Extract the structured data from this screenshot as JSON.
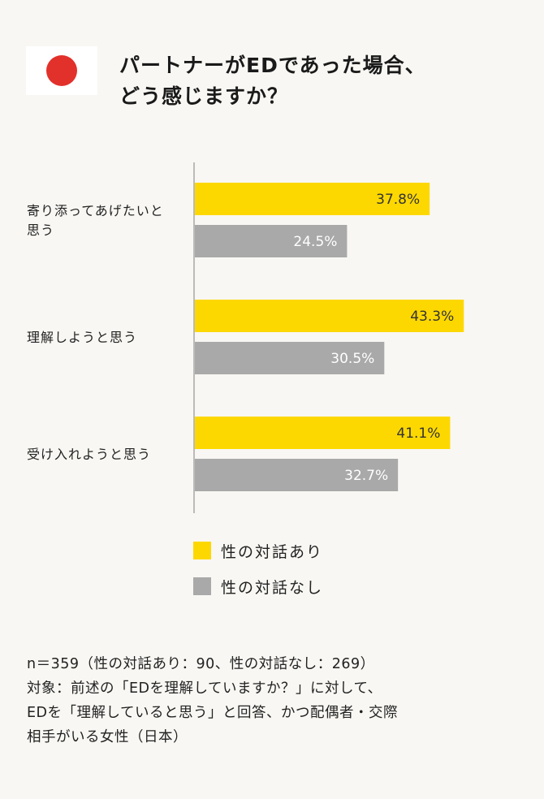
{
  "header": {
    "title_line1": "パートナーがEDであった場合、",
    "title_line2": "どう感じますか？",
    "flag_icon": "japan-flag-icon"
  },
  "colors": {
    "series_with_talk": "#fdd800",
    "series_without_talk": "#a9a9a9",
    "axis": "#bbbbbb",
    "flag_red": "#e2312b"
  },
  "chart_data": {
    "type": "bar",
    "orientation": "horizontal",
    "categories": [
      [
        "寄り添ってあげたいと",
        "思う"
      ],
      [
        "理解しようと思う"
      ],
      [
        "受け入れようと思う"
      ]
    ],
    "series": [
      {
        "name": "性の対話あり",
        "values": [
          37.8,
          43.3,
          41.1
        ],
        "labels": [
          "37.8%",
          "43.3%",
          "41.1%"
        ],
        "color": "#fdd800",
        "label_color": "#333333"
      },
      {
        "name": "性の対話なし",
        "values": [
          24.5,
          30.5,
          32.7
        ],
        "labels": [
          "24.5%",
          "30.5%",
          "32.7%"
        ],
        "color": "#a9a9a9",
        "label_color": "#ffffff"
      }
    ],
    "xlim": [
      0,
      100
    ],
    "grid": false,
    "legend_position": "bottom"
  },
  "legend": {
    "items": [
      {
        "label": "性の対話あり",
        "color": "#fdd800"
      },
      {
        "label": "性の対話なし",
        "color": "#a9a9a9"
      }
    ]
  },
  "footnote": {
    "line1": "n＝359（性の対話あり：90、性の対話なし：269）",
    "line2": "対象：前述の「EDを理解していますか？」に対して、",
    "line3": "EDを「理解していると思う」と回答、かつ配偶者・交際",
    "line4": "相手がいる女性（日本）"
  }
}
